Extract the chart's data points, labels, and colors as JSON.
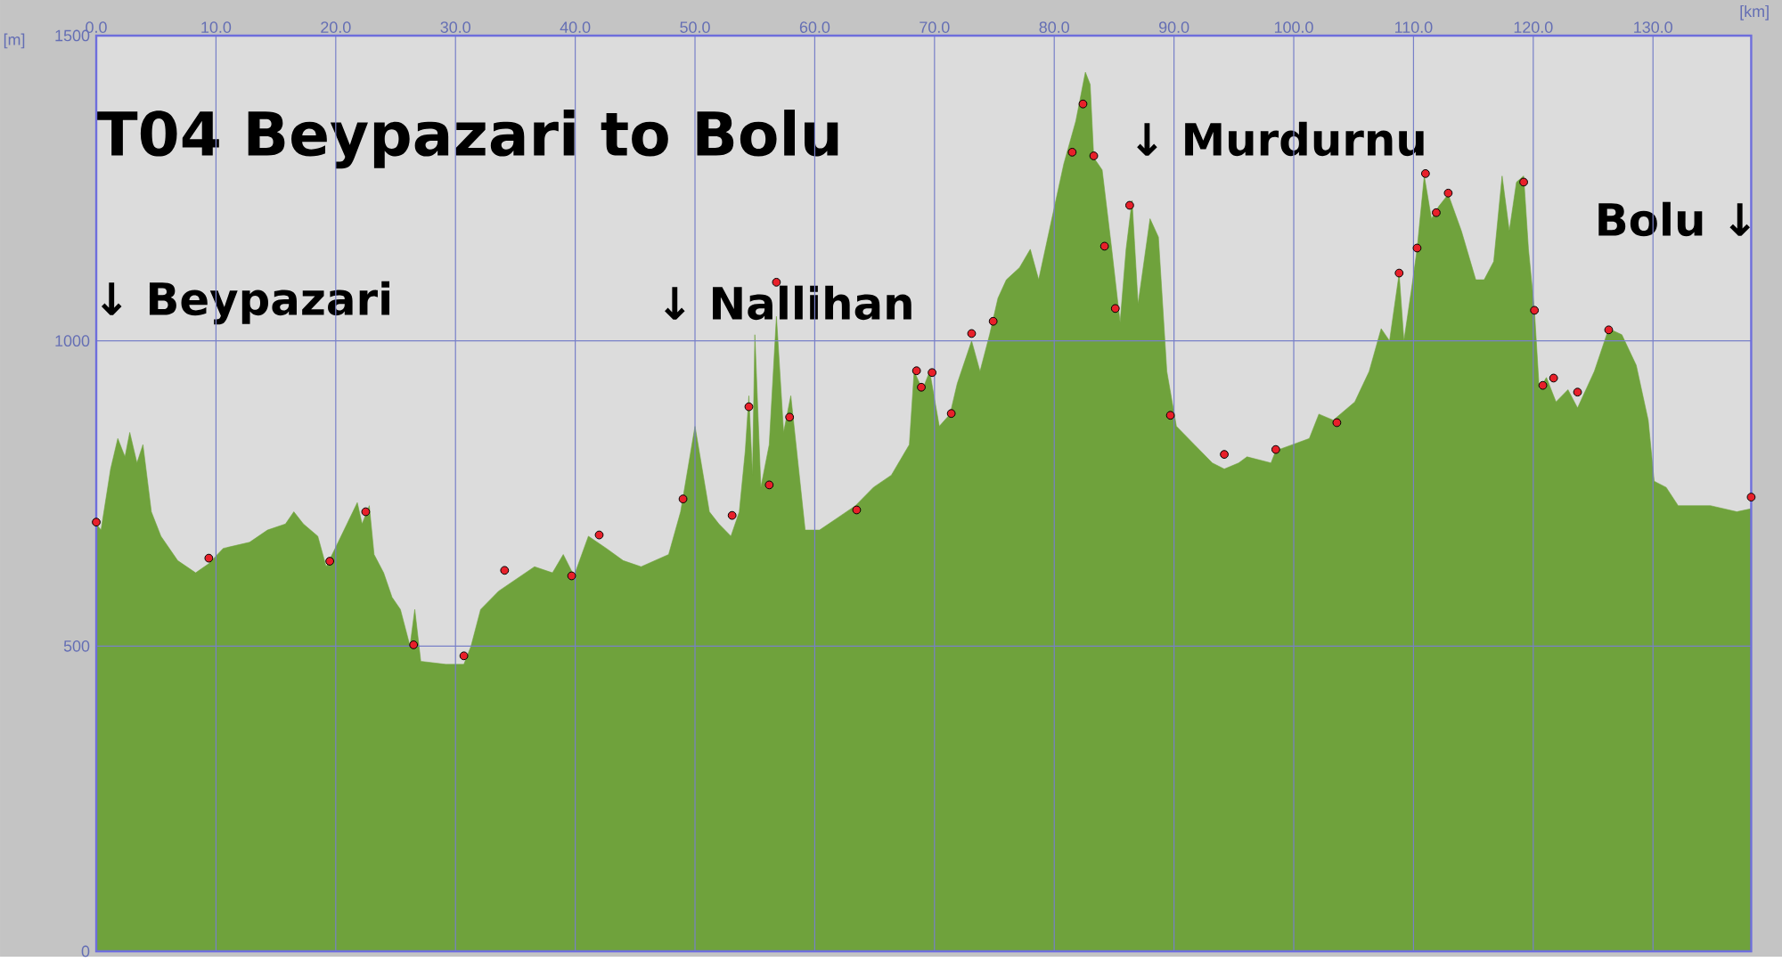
{
  "chart_data": {
    "type": "area",
    "title": "T04 Beypazari to Bolu",
    "xlabel": "[km]",
    "ylabel": "[m]",
    "xlim": [
      0,
      138.2
    ],
    "ylim": [
      0,
      1500
    ],
    "xticks": [
      {
        "value": 0,
        "label": "0.0"
      },
      {
        "value": 10,
        "label": "10.0"
      },
      {
        "value": 20,
        "label": "20.0"
      },
      {
        "value": 30,
        "label": "30.0"
      },
      {
        "value": 40,
        "label": "40.0"
      },
      {
        "value": 50,
        "label": "50.0"
      },
      {
        "value": 60,
        "label": "60.0"
      },
      {
        "value": 70,
        "label": "70.0"
      },
      {
        "value": 80,
        "label": "80.0"
      },
      {
        "value": 90,
        "label": "90.0"
      },
      {
        "value": 100,
        "label": "100.0"
      },
      {
        "value": 110,
        "label": "110.0"
      },
      {
        "value": 120,
        "label": "120.0"
      },
      {
        "value": 130,
        "label": "130.0"
      }
    ],
    "yticks": [
      0,
      500,
      1000,
      1500
    ],
    "grid": true,
    "annotations": [
      "↓ Beypazari",
      "↓ Nallihan",
      "↓ Murdurnu",
      "Bolu ↓"
    ],
    "series": [
      {
        "color": "#6fa23c",
        "x": [
          0,
          0.4,
          1.2,
          1.8,
          2.4,
          2.8,
          3.4,
          3.9,
          4.6,
          5.4,
          6.8,
          8.3,
          9.4,
          10.6,
          12.8,
          14.3,
          15.8,
          16.5,
          17.3,
          18.5,
          19.2,
          20.2,
          21.8,
          22.2,
          22.8,
          23.2,
          24,
          24.7,
          25.4,
          26.2,
          26.6,
          27.1,
          29.2,
          30.7,
          31.3,
          32.1,
          33.6,
          35.1,
          36.6,
          38.1,
          39,
          39.9,
          41.1,
          42.6,
          44,
          45.5,
          47.8,
          48.8,
          50,
          51.2,
          52,
          53,
          53.7,
          54.2,
          54.5,
          54.8,
          55,
          55.5,
          56.2,
          56.8,
          57.4,
          58,
          58.6,
          59.2,
          60.4,
          61.9,
          63.4,
          64.9,
          66.4,
          67.9,
          68.3,
          69,
          69.6,
          70.4,
          71.3,
          71.9,
          73.1,
          73.8,
          74.6,
          75.3,
          76,
          77.1,
          78,
          78.7,
          79.8,
          80.8,
          81.8,
          82.6,
          83,
          83.3,
          84,
          84.8,
          85.5,
          86,
          86.5,
          87,
          88,
          88.7,
          89.4,
          90.2,
          91.7,
          93.2,
          94.2,
          95.4,
          96.1,
          98.1,
          98.5,
          99.9,
          101.3,
          102.1,
          103.3,
          105.1,
          106.3,
          107.3,
          108,
          108.8,
          109.2,
          109.8,
          110.3,
          110.9,
          111.5,
          112.1,
          112.9,
          114,
          115.2,
          115.9,
          116.7,
          117.4,
          118,
          118.6,
          119.2,
          119.6,
          120.1,
          120.5,
          121.1,
          121.9,
          122.9,
          123.7,
          125.1,
          126.3,
          127.4,
          128.6,
          129.6,
          130.1,
          131.1,
          132.1,
          134.8,
          137,
          138.2
        ],
        "values": [
          700,
          690,
          790,
          840,
          810,
          850,
          800,
          830,
          720,
          680,
          640,
          620,
          635,
          660,
          670,
          690,
          700,
          720,
          700,
          680,
          630,
          670,
          735,
          700,
          730,
          650,
          620,
          580,
          560,
          500,
          560,
          475,
          470,
          470,
          500,
          560,
          590,
          610,
          630,
          620,
          650,
          615,
          680,
          660,
          640,
          630,
          650,
          720,
          860,
          720,
          700,
          680,
          720,
          820,
          910,
          780,
          1010,
          760,
          830,
          1040,
          850,
          910,
          800,
          690,
          690,
          710,
          730,
          760,
          780,
          830,
          950,
          920,
          950,
          860,
          880,
          930,
          1000,
          950,
          1010,
          1070,
          1100,
          1120,
          1150,
          1100,
          1200,
          1290,
          1360,
          1440,
          1420,
          1300,
          1280,
          1150,
          1030,
          1150,
          1230,
          1060,
          1200,
          1170,
          950,
          860,
          830,
          800,
          790,
          800,
          810,
          800,
          820,
          830,
          840,
          880,
          870,
          900,
          950,
          1020,
          1000,
          1110,
          1000,
          1080,
          1150,
          1270,
          1200,
          1220,
          1240,
          1180,
          1100,
          1100,
          1130,
          1270,
          1180,
          1260,
          1270,
          1150,
          1050,
          920,
          940,
          900,
          920,
          890,
          950,
          1020,
          1010,
          960,
          870,
          770,
          760,
          730,
          730,
          720,
          725
        ]
      },
      {
        "type": "scatter",
        "color": "#e8202a",
        "marker": "circle",
        "x": [
          0,
          9.4,
          19.5,
          22.5,
          26.5,
          30.7,
          34.1,
          39.7,
          42,
          49,
          53.1,
          54.5,
          56.2,
          56.8,
          57.9,
          63.5,
          68.5,
          68.9,
          69.8,
          71.4,
          73.1,
          74.9,
          81.5,
          82.4,
          83.3,
          84.2,
          85.1,
          86.3,
          89.7,
          94.2,
          98.5,
          103.6,
          108.8,
          110.3,
          111,
          111.9,
          112.9,
          119.2,
          120.1,
          120.8,
          121.7,
          123.7,
          126.3,
          138.2
        ],
        "values": [
          703,
          644,
          639,
          720,
          502,
          484,
          624,
          615,
          682,
          741,
          714,
          892,
          764,
          1096,
          875,
          723,
          951,
          924,
          948,
          881,
          1012,
          1032,
          1309,
          1388,
          1303,
          1155,
          1053,
          1222,
          878,
          814,
          822,
          866,
          1111,
          1152,
          1274,
          1210,
          1242,
          1260,
          1050,
          927,
          939,
          916,
          1018,
          744
        ]
      }
    ]
  }
}
